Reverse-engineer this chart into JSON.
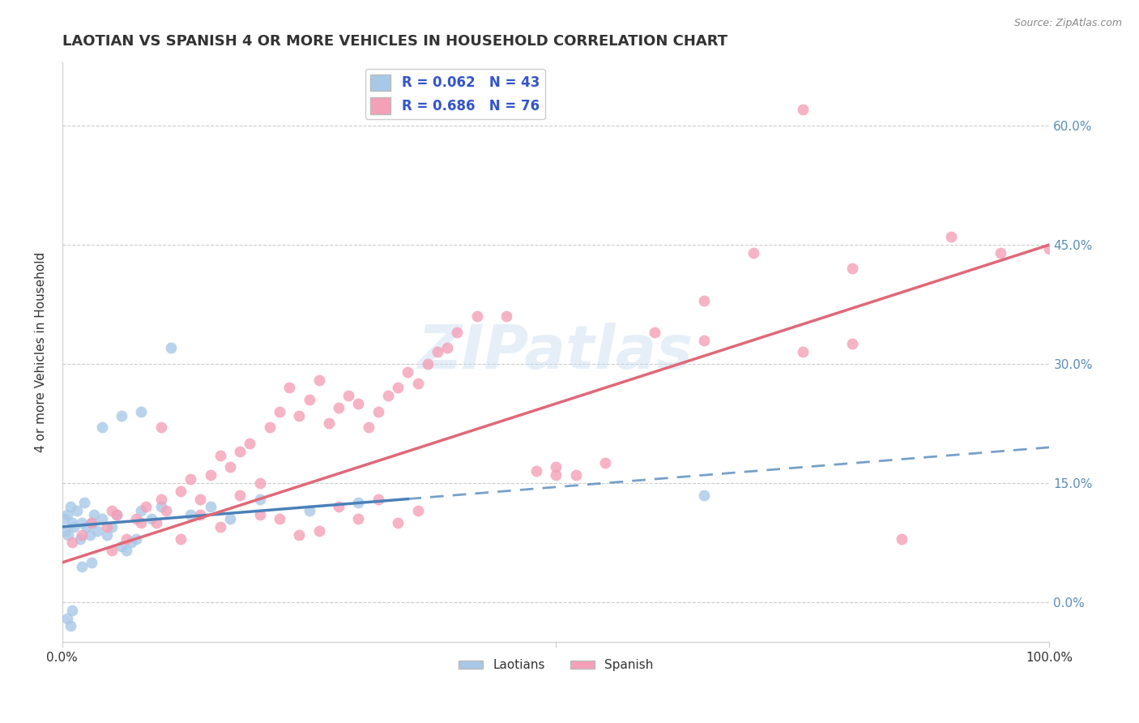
{
  "title": "LAOTIAN VS SPANISH 4 OR MORE VEHICLES IN HOUSEHOLD CORRELATION CHART",
  "source": "Source: ZipAtlas.com",
  "ylabel": "4 or more Vehicles in Household",
  "xlim": [
    0,
    100
  ],
  "ylim": [
    -5,
    68
  ],
  "yticks": [
    0,
    15,
    30,
    45,
    60
  ],
  "ytick_labels": [
    "0.0%",
    "15.0%",
    "30.0%",
    "45.0%",
    "60.0%"
  ],
  "r_laotian": 0.062,
  "n_laotian": 43,
  "r_spanish": 0.686,
  "n_spanish": 76,
  "color_laotian": "#a8c8e8",
  "color_spanish": "#f4a0b8",
  "color_laotian_line": "#4a80b8",
  "color_spanish_line": "#e06878",
  "watermark": "ZIPatlas",
  "lao_x": [
    0.2,
    0.3,
    0.5,
    0.6,
    0.8,
    1.0,
    1.2,
    1.5,
    1.8,
    2.0,
    2.2,
    2.5,
    2.8,
    3.0,
    3.2,
    3.5,
    4.0,
    4.5,
    5.0,
    5.5,
    6.0,
    6.5,
    7.0,
    7.5,
    8.0,
    9.0,
    10.0,
    11.0,
    13.0,
    15.0,
    17.0,
    20.0,
    25.0,
    30.0,
    8.0,
    6.0,
    4.0,
    3.0,
    2.0,
    1.0,
    0.5,
    0.8,
    65.0
  ],
  "lao_y": [
    10.5,
    9.0,
    11.0,
    8.5,
    12.0,
    10.0,
    9.5,
    11.5,
    8.0,
    10.0,
    12.5,
    9.5,
    8.5,
    10.0,
    11.0,
    9.0,
    10.5,
    8.5,
    9.5,
    11.0,
    7.0,
    6.5,
    7.5,
    8.0,
    11.5,
    10.5,
    12.0,
    32.0,
    11.0,
    12.0,
    10.5,
    13.0,
    11.5,
    12.5,
    24.0,
    23.5,
    22.0,
    5.0,
    4.5,
    -1.0,
    -2.0,
    -3.0,
    13.5
  ],
  "spa_x": [
    1.0,
    2.0,
    3.0,
    4.5,
    5.5,
    6.5,
    7.5,
    8.5,
    9.5,
    10.5,
    12.0,
    13.0,
    14.0,
    15.0,
    16.0,
    17.0,
    18.0,
    19.0,
    20.0,
    21.0,
    22.0,
    23.0,
    24.0,
    25.0,
    26.0,
    27.0,
    28.0,
    29.0,
    30.0,
    31.0,
    32.0,
    33.0,
    34.0,
    35.0,
    36.0,
    37.0,
    38.0,
    39.0,
    40.0,
    42.0,
    5.0,
    8.0,
    10.0,
    12.0,
    14.0,
    16.0,
    18.0,
    20.0,
    22.0,
    24.0,
    26.0,
    28.0,
    30.0,
    32.0,
    34.0,
    36.0,
    48.0,
    50.0,
    52.0,
    55.0,
    60.0,
    65.0,
    70.0,
    75.0,
    80.0,
    85.0,
    90.0,
    95.0,
    100.0,
    75.0,
    50.0,
    80.0,
    65.0,
    45.0,
    10.0,
    5.0
  ],
  "spa_y": [
    7.5,
    8.5,
    10.0,
    9.5,
    11.0,
    8.0,
    10.5,
    12.0,
    10.0,
    11.5,
    14.0,
    15.5,
    13.0,
    16.0,
    18.5,
    17.0,
    19.0,
    20.0,
    15.0,
    22.0,
    24.0,
    27.0,
    23.5,
    25.5,
    28.0,
    22.5,
    24.5,
    26.0,
    25.0,
    22.0,
    24.0,
    26.0,
    27.0,
    29.0,
    27.5,
    30.0,
    31.5,
    32.0,
    34.0,
    36.0,
    11.5,
    10.0,
    13.0,
    8.0,
    11.0,
    9.5,
    13.5,
    11.0,
    10.5,
    8.5,
    9.0,
    12.0,
    10.5,
    13.0,
    10.0,
    11.5,
    16.5,
    17.0,
    16.0,
    17.5,
    34.0,
    33.0,
    44.0,
    31.5,
    42.0,
    8.0,
    46.0,
    44.0,
    44.5,
    62.0,
    16.0,
    32.5,
    38.0,
    36.0,
    22.0,
    6.5
  ]
}
